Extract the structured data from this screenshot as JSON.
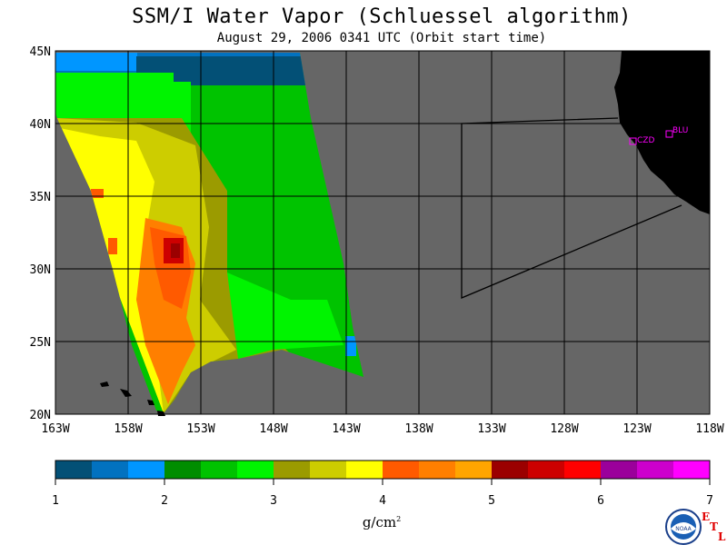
{
  "title": "SSM/I Water Vapor (Schluessel algorithm)",
  "subtitle": "August 29, 2006  0341 UTC  (Orbit start time)",
  "map": {
    "lat_labels": [
      "45N",
      "40N",
      "35N",
      "30N",
      "25N",
      "20N"
    ],
    "lon_labels": [
      "163W",
      "158W",
      "153W",
      "148W",
      "143W",
      "138W",
      "133W",
      "128W",
      "123W",
      "118W"
    ],
    "ocean_no_data_color": "#666666",
    "land_color": "#000000",
    "stations": [
      {
        "name": "CZD",
        "color": "#ff00ff"
      },
      {
        "name": "BLU",
        "color": "#ff00ff"
      }
    ]
  },
  "colorbar": {
    "tick_labels": [
      "1",
      "2",
      "3",
      "4",
      "5",
      "6",
      "7"
    ],
    "colors": [
      "#035076",
      "#0272c0",
      "#0096ff",
      "#008d00",
      "#00c300",
      "#00f400",
      "#9b9b00",
      "#cdcd00",
      "#ffff00",
      "#ff5a00",
      "#ff7f00",
      "#ffa500",
      "#9b0000",
      "#cd0000",
      "#ff0000",
      "#9b009b",
      "#cd00cd",
      "#ff00ff"
    ],
    "units_text": "g/cm",
    "units_sup": "2"
  },
  "logo": {
    "text": "NOAA",
    "etl": [
      "E",
      "T",
      "L"
    ]
  }
}
